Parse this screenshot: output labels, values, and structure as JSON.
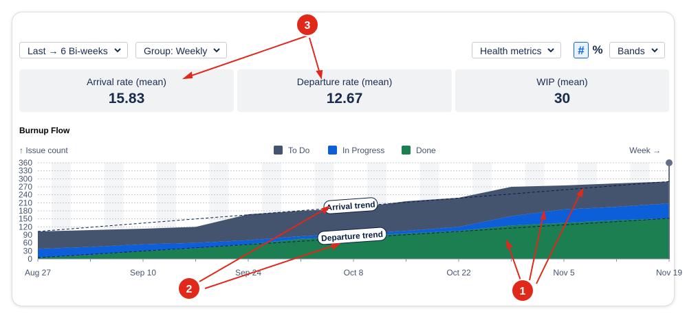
{
  "controls": {
    "range": "Last → 6 Bi-weeks",
    "group": "Group: Weekly",
    "health": "Health metrics",
    "count_toggle": "#",
    "percent_toggle": "%",
    "bands": "Bands"
  },
  "metrics": [
    {
      "label": "Arrival rate (mean)",
      "value": 15.83
    },
    {
      "label": "Departure rate (mean)",
      "value": 12.67
    },
    {
      "label": "WIP (mean)",
      "value": 30
    }
  ],
  "chart": {
    "type": "area",
    "stacked": true,
    "title": "Burnup Flow",
    "y_label": "↑ Issue count",
    "x_label": "Week →",
    "categories": [
      "Aug 27",
      null,
      "Sep 10",
      null,
      "Sep 24",
      null,
      "Oct 8",
      null,
      "Oct 22",
      null,
      "Nov 5",
      null,
      "Nov 19"
    ],
    "series": [
      {
        "name": "To Do",
        "color": "#44546f",
        "values": [
          65,
          63,
          58,
          60,
          97,
          95,
          95,
          111,
          109,
          110,
          90,
          88,
          82
        ]
      },
      {
        "name": "In Progress",
        "color": "#0c5fd8",
        "values": [
          33,
          30,
          25,
          20,
          15,
          10,
          10,
          10,
          15,
          35,
          50,
          50,
          56
        ]
      },
      {
        "name": "Done",
        "color": "#1b7f52",
        "values": [
          5,
          15,
          30,
          40,
          55,
          75,
          85,
          95,
          105,
          125,
          135,
          145,
          152
        ]
      }
    ],
    "ylim": [
      0,
      360
    ],
    "yticks": [
      0,
      30,
      60,
      90,
      120,
      150,
      180,
      210,
      240,
      270,
      300,
      330,
      360
    ],
    "grid": true,
    "trends": [
      {
        "label": "Arrival trend",
        "values": [
          103,
          290
        ]
      },
      {
        "label": "Departure trend",
        "values": [
          5,
          152
        ]
      }
    ]
  },
  "callouts": [
    1,
    2,
    3
  ]
}
